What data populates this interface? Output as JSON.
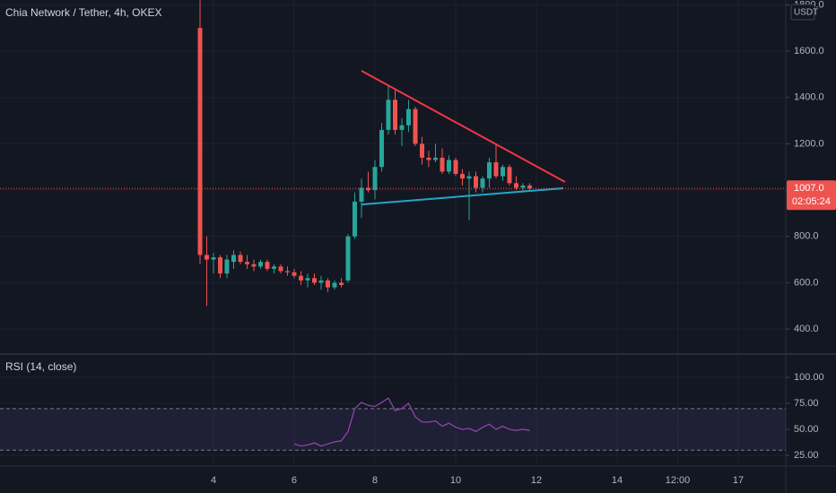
{
  "chart_data": [
    {
      "type": "candlestick",
      "title": "Chia Network / Tether, 4h, OKEX",
      "currency": "USDT",
      "x": [
        3.667,
        3.833,
        4,
        4.167,
        4.333,
        4.5,
        4.667,
        4.833,
        5,
        5.167,
        5.333,
        5.5,
        5.667,
        5.833,
        6,
        6.167,
        6.333,
        6.5,
        6.667,
        6.833,
        7,
        7.167,
        7.333,
        7.5,
        7.667,
        7.833,
        8,
        8.167,
        8.333,
        8.5,
        8.667,
        8.833,
        9,
        9.167,
        9.333,
        9.5,
        9.667,
        9.833,
        10,
        10.167,
        10.333,
        10.5,
        10.667,
        10.833,
        11,
        11.167,
        11.333,
        11.5,
        11.667,
        11.833
      ],
      "open": [
        1700,
        720,
        700,
        710,
        640,
        690,
        720,
        690,
        680,
        670,
        690,
        660,
        670,
        650,
        645,
        630,
        610,
        620,
        600,
        610,
        580,
        600,
        610,
        800,
        950,
        1010,
        1000,
        1100,
        1260,
        1390,
        1260,
        1280,
        1350,
        1200,
        1140,
        1130,
        1140,
        1080,
        1130,
        1070,
        1050,
        1060,
        1010,
        1050,
        1120,
        1060,
        1100,
        1030,
        1010,
        1020
      ],
      "high": [
        1820,
        800,
        730,
        720,
        720,
        740,
        735,
        720,
        700,
        700,
        700,
        680,
        680,
        670,
        660,
        650,
        640,
        640,
        630,
        620,
        610,
        620,
        810,
        990,
        1050,
        1080,
        1130,
        1290,
        1450,
        1440,
        1310,
        1390,
        1360,
        1230,
        1170,
        1200,
        1180,
        1150,
        1140,
        1090,
        1080,
        1080,
        1060,
        1140,
        1200,
        1110,
        1110,
        1060,
        1030,
        1030
      ],
      "low": [
        680,
        500,
        640,
        620,
        620,
        660,
        680,
        660,
        650,
        660,
        650,
        640,
        640,
        630,
        620,
        590,
        580,
        590,
        570,
        560,
        570,
        580,
        600,
        790,
        880,
        990,
        960,
        1080,
        1240,
        1240,
        1190,
        1250,
        1190,
        1110,
        1100,
        1120,
        1070,
        1070,
        1060,
        1020,
        870,
        990,
        990,
        1010,
        1050,
        1040,
        1020,
        1000,
        990,
        1000
      ],
      "close": [
        720,
        700,
        710,
        640,
        700,
        720,
        690,
        680,
        670,
        690,
        660,
        670,
        650,
        645,
        630,
        610,
        620,
        600,
        610,
        580,
        600,
        590,
        800,
        950,
        1010,
        1000,
        1100,
        1260,
        1390,
        1260,
        1280,
        1350,
        1200,
        1140,
        1130,
        1140,
        1080,
        1130,
        1070,
        1050,
        1060,
        1010,
        1050,
        1120,
        1060,
        1100,
        1030,
        1010,
        1020,
        1007
      ],
      "up_color": "#26a69a",
      "down_color": "#ef5350",
      "xlim": [
        -1.289,
        18.178
      ],
      "ylim": [
        292,
        1821
      ],
      "xticks": [
        4,
        6,
        8,
        10,
        12,
        14,
        {
          "value": 15.5,
          "label": "12:00"
        },
        17
      ],
      "yticks": [
        {
          "value": 1800,
          "label": "1800.0"
        },
        {
          "value": 1600,
          "label": "1600.0"
        },
        {
          "value": 1400,
          "label": "1400.0"
        },
        {
          "value": 1200,
          "label": "1200.0"
        },
        {
          "value": 1000,
          "label": "1000.0"
        },
        {
          "value": 800,
          "label": "800.0"
        },
        {
          "value": 600,
          "label": "600.0"
        },
        {
          "value": 400,
          "label": "400.0"
        }
      ],
      "last_price": {
        "value": 1007,
        "label": "1007.0"
      },
      "countdown": "02:05:24",
      "trendlines": [
        {
          "color": "#f23645",
          "x": [
            7.667,
            12.711
          ],
          "y": [
            1515,
            1035
          ]
        },
        {
          "color": "#22a8c8",
          "x": [
            7.667,
            12.667
          ],
          "y": [
            938,
            1008
          ]
        }
      ],
      "grid": true
    },
    {
      "type": "line",
      "title": "RSI (14, close)",
      "color": "#8e44ad",
      "x": [
        6,
        6.167,
        6.333,
        6.5,
        6.667,
        6.833,
        7,
        7.167,
        7.333,
        7.5,
        7.667,
        7.833,
        8,
        8.167,
        8.333,
        8.5,
        8.667,
        8.833,
        9,
        9.167,
        9.333,
        9.5,
        9.667,
        9.833,
        10,
        10.167,
        10.333,
        10.5,
        10.667,
        10.833,
        11,
        11.167,
        11.333,
        11.5,
        11.667,
        11.833
      ],
      "values": [
        36,
        34,
        35,
        37,
        34,
        36,
        38,
        39,
        48,
        70,
        76,
        73,
        72,
        76,
        80,
        68,
        70,
        75,
        62,
        57,
        57,
        58,
        53,
        56,
        52,
        50,
        51,
        48,
        52,
        55,
        50,
        53,
        50,
        49,
        50,
        49
      ],
      "ylim": [
        14.7,
        122.4
      ],
      "yticks": [
        {
          "value": 100,
          "label": "100.00"
        },
        {
          "value": 75,
          "label": "75.00"
        },
        {
          "value": 50,
          "label": "50.00"
        },
        {
          "value": 25,
          "label": "25.00"
        }
      ],
      "band": [
        30,
        70
      ],
      "band_color": "#7e57c2"
    }
  ]
}
